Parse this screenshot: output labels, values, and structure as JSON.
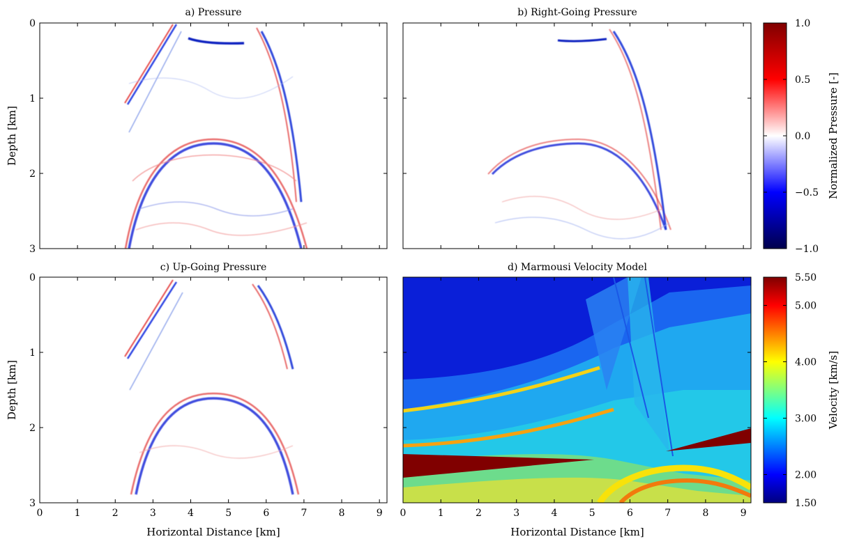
{
  "chart_data": [
    {
      "type": "heatmap",
      "title": "a) Pressure",
      "xlabel": "",
      "ylabel": "Depth [km]",
      "xlim": [
        0,
        9.2
      ],
      "ylim": [
        3,
        0
      ],
      "yticks": [
        "0",
        "1",
        "2",
        "3"
      ],
      "features": [
        {
          "kind": "arc",
          "center_x": 4.6,
          "top_depth": 1.6,
          "left_x": 2.4,
          "right_x": 7.0,
          "bottom_depth": 3.0,
          "amplitude": -0.8
        },
        {
          "kind": "arc",
          "center_x": 3.6,
          "top_depth": 0.0,
          "left_x": 2.3,
          "right_x": 7.1,
          "bottom_depth": 2.8,
          "amplitude": 0.6
        },
        {
          "kind": "linear",
          "x0": 3.6,
          "d0": 0.0,
          "x1": 2.3,
          "d1": 1.0,
          "amplitude": -0.6
        },
        {
          "kind": "linear",
          "x0": 4.0,
          "d0": 0.22,
          "x1": 4.5,
          "d1": 0.27,
          "amplitude": -0.9
        }
      ],
      "colormap": "seismic",
      "clim": [
        -1.0,
        1.0
      ]
    },
    {
      "type": "heatmap",
      "title": "b) Right-Going Pressure",
      "xlabel": "",
      "ylabel": "",
      "xlim": [
        0,
        9.2
      ],
      "ylim": [
        3,
        0
      ],
      "features": [
        {
          "kind": "arc",
          "center_x": 4.6,
          "top_depth": 1.6,
          "left_x": 2.4,
          "right_x": 7.0,
          "bottom_depth": 3.0,
          "amplitude": -0.7
        },
        {
          "kind": "linear",
          "x0": 5.5,
          "d0": 0.25,
          "x1": 7.0,
          "d1": 2.8,
          "amplitude": -0.8
        },
        {
          "kind": "linear",
          "x0": 4.0,
          "d0": 0.25,
          "x1": 5.0,
          "d1": 0.22,
          "amplitude": -0.7
        }
      ],
      "colormap": "seismic",
      "clim": [
        -1.0,
        1.0
      ]
    },
    {
      "type": "heatmap",
      "title": "c) Up-Going Pressure",
      "xlabel": "Horizontal Distance [km]",
      "ylabel": "Depth [km]",
      "xlim": [
        0,
        9.2
      ],
      "ylim": [
        3,
        0
      ],
      "xticks": [
        "0",
        "1",
        "2",
        "3",
        "4",
        "5",
        "6",
        "7",
        "8",
        "9"
      ],
      "yticks": [
        "0",
        "1",
        "2",
        "3"
      ],
      "features": [
        {
          "kind": "arc",
          "center_x": 4.6,
          "top_depth": 1.6,
          "left_x": 2.4,
          "right_x": 7.0,
          "bottom_depth": 2.9,
          "amplitude": -0.8
        },
        {
          "kind": "linear",
          "x0": 3.6,
          "d0": 0.05,
          "x1": 2.3,
          "d1": 1.0,
          "amplitude": -0.6
        },
        {
          "kind": "linear",
          "x0": 5.5,
          "d0": 0.1,
          "x1": 6.8,
          "d1": 1.2,
          "amplitude": -0.7
        }
      ],
      "colormap": "seismic",
      "clim": [
        -1.0,
        1.0
      ]
    },
    {
      "type": "heatmap",
      "title": "d) Marmousi Velocity Model",
      "xlabel": "Horizontal Distance [km]",
      "ylabel": "",
      "xlim": [
        0,
        9.2
      ],
      "ylim": [
        3,
        0
      ],
      "xticks": [
        "0",
        "1",
        "2",
        "3",
        "4",
        "5",
        "6",
        "7",
        "8",
        "9"
      ],
      "colormap": "jet",
      "clim": [
        1.5,
        5.5
      ],
      "layers": [
        {
          "top_depth_left": 0.0,
          "top_depth_right": 0.0,
          "velocity": 1.55
        },
        {
          "top_depth_left": 1.35,
          "top_depth_right": 0.9,
          "velocity": 2.3
        },
        {
          "top_depth_left": 1.8,
          "top_depth_right": 1.2,
          "velocity": 3.0
        },
        {
          "top_depth_left": 2.2,
          "top_depth_right": 1.6,
          "velocity": 3.9
        },
        {
          "top_depth_left": 2.6,
          "top_depth_right": 2.1,
          "velocity": 3.5
        }
      ],
      "salt_bodies": [
        {
          "points": [
            [
              0,
              2.35
            ],
            [
              4.6,
              2.45
            ],
            [
              0,
              2.65
            ]
          ],
          "velocity": 5.5
        },
        {
          "points": [
            [
              7.0,
              2.3
            ],
            [
              9.2,
              1.95
            ],
            [
              9.2,
              2.15
            ]
          ],
          "velocity": 5.5
        }
      ]
    }
  ],
  "colorbars": [
    {
      "label": "Normalized Pressure [-]",
      "ticks": [
        "1.0",
        "0.5",
        "0.0",
        "−0.5",
        "−1.0"
      ],
      "range": [
        -1.0,
        1.0
      ],
      "colormap": "seismic"
    },
    {
      "label": "Velocity [km/s]",
      "ticks": [
        "5.50",
        "5.00",
        "4.00",
        "3.00",
        "2.00",
        "1.50"
      ],
      "tick_values": [
        5.5,
        5.0,
        4.0,
        3.0,
        2.0,
        1.5
      ],
      "range": [
        1.5,
        5.5
      ],
      "colormap": "jet"
    }
  ]
}
